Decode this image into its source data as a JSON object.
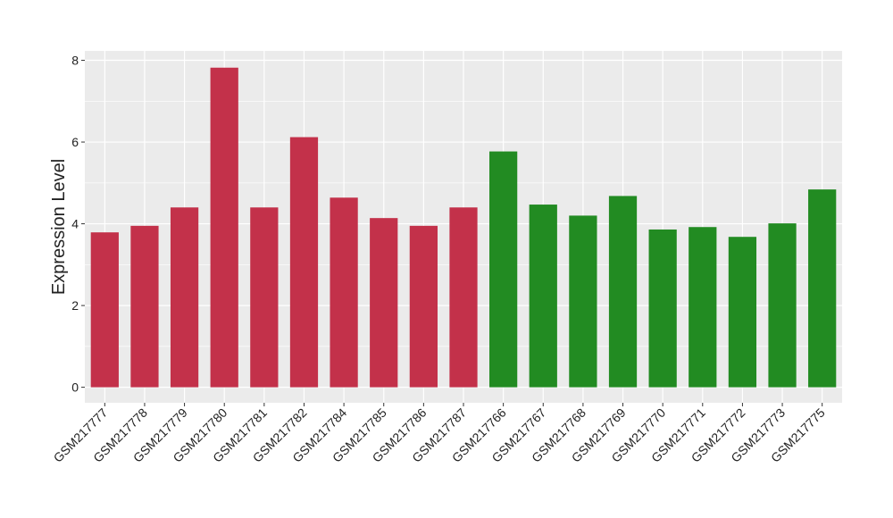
{
  "chart_data": {
    "type": "bar",
    "title": "",
    "xlabel": "",
    "ylabel": "Expression Level",
    "ylim": [
      -0.38,
      8.23
    ],
    "yticks": [
      0,
      2,
      4,
      6,
      8
    ],
    "grid": true,
    "categories": [
      "GSM217777",
      "GSM217778",
      "GSM217779",
      "GSM217780",
      "GSM217781",
      "GSM217782",
      "GSM217784",
      "GSM217785",
      "GSM217786",
      "GSM217787",
      "GSM217766",
      "GSM217767",
      "GSM217768",
      "GSM217769",
      "GSM217770",
      "GSM217771",
      "GSM217772",
      "GSM217773",
      "GSM217775"
    ],
    "values": [
      3.79,
      3.95,
      4.4,
      7.82,
      4.4,
      6.12,
      4.64,
      4.14,
      3.95,
      4.4,
      5.77,
      4.47,
      4.2,
      4.68,
      3.86,
      3.92,
      3.68,
      4.01,
      4.84
    ],
    "groups": [
      "A",
      "A",
      "A",
      "A",
      "A",
      "A",
      "A",
      "A",
      "A",
      "A",
      "B",
      "B",
      "B",
      "B",
      "B",
      "B",
      "B",
      "B",
      "B"
    ],
    "colors": {
      "A": "#C3314A",
      "B": "#228B22"
    },
    "background": "#EBEBEB"
  }
}
